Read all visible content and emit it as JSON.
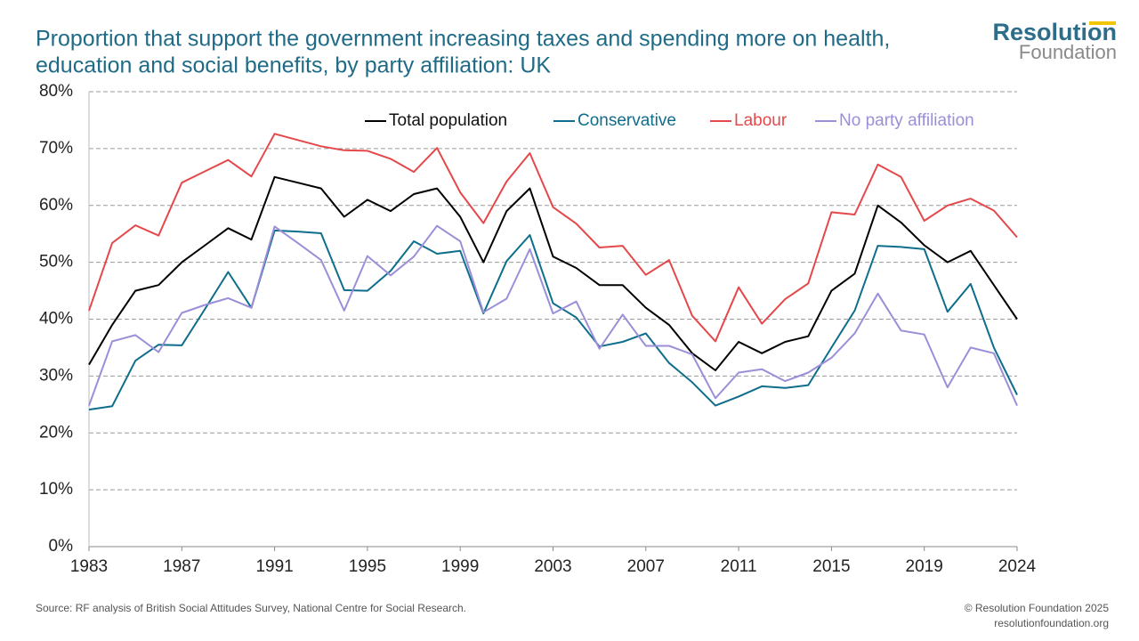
{
  "chart_data": {
    "type": "line",
    "title_lines": [
      "Proportion that support the government increasing taxes and spending more on health,",
      "education and social benefits, by party affiliation: UK"
    ],
    "categories": [
      "1983",
      null,
      null,
      null,
      "1987",
      null,
      null,
      null,
      "1991",
      null,
      null,
      null,
      "1995",
      null,
      null,
      null,
      "1999",
      null,
      null,
      null,
      "2003",
      null,
      null,
      null,
      "2007",
      null,
      null,
      null,
      "2011",
      null,
      null,
      null,
      "2015",
      null,
      null,
      null,
      "2019",
      null,
      null,
      null,
      "2024"
    ],
    "series": [
      {
        "name": "Total population",
        "color": "#000000",
        "values": [
          32,
          39,
          45,
          46,
          50,
          53,
          56,
          54,
          65,
          64,
          63,
          58,
          61,
          59,
          62,
          63,
          58,
          50,
          59,
          63,
          51,
          49,
          46,
          46,
          42,
          39,
          34,
          31,
          36,
          34,
          36,
          37,
          45,
          48,
          60,
          57,
          53,
          50,
          52,
          46,
          40
        ]
      },
      {
        "name": "Conservative",
        "color": "#0e6e8c",
        "values": [
          24.1,
          24.7,
          32.7,
          35.5,
          35.4,
          41.8,
          48.3,
          42,
          55.6,
          55.4,
          55.1,
          45.1,
          45,
          48.5,
          53.7,
          51.5,
          52,
          41,
          50.2,
          54.8,
          42.8,
          40.3,
          35.2,
          36,
          37.5,
          32.3,
          28.9,
          24.8,
          26.4,
          28.2,
          27.9,
          28.4,
          35,
          41.5,
          52.9,
          52.7,
          52.3,
          41.3,
          46.2,
          35,
          26.7
        ]
      },
      {
        "name": "Labour",
        "color": "#e5484a",
        "values": [
          41.5,
          53.4,
          56.5,
          54.7,
          64,
          66,
          68,
          65.1,
          72.6,
          71.5,
          70.4,
          69.7,
          69.6,
          68.2,
          65.9,
          70.1,
          62.3,
          56.9,
          64.2,
          69.2,
          59.7,
          56.8,
          52.6,
          52.9,
          47.8,
          50.4,
          40.6,
          36.1,
          45.6,
          39.2,
          43.5,
          46.3,
          58.8,
          58.4,
          67.2,
          65,
          57.3,
          60,
          61.2,
          59.1,
          54.4
        ]
      },
      {
        "name": "No party affiliation",
        "color": "#9b8fd8",
        "values": [
          24.8,
          36.1,
          37.2,
          34.2,
          41.1,
          42.5,
          43.7,
          42,
          56.3,
          53.4,
          50.4,
          41.5,
          51.1,
          47.7,
          51,
          56.4,
          53.7,
          41.2,
          43.6,
          52.3,
          41,
          43.1,
          34.8,
          40.8,
          35.3,
          35.3,
          33.8,
          26.1,
          30.6,
          31.2,
          29.1,
          30.6,
          33.2,
          37.5,
          44.5,
          38,
          37.3,
          28,
          35,
          34,
          24.8
        ]
      }
    ],
    "ylim": [
      0,
      80
    ],
    "yticks": [
      {
        "value": 0,
        "label": "0%"
      },
      {
        "value": 10,
        "label": "10%"
      },
      {
        "value": 20,
        "label": "20%"
      },
      {
        "value": 30,
        "label": "30%"
      },
      {
        "value": 40,
        "label": "40%"
      },
      {
        "value": 50,
        "label": "50%"
      },
      {
        "value": 60,
        "label": "60%"
      },
      {
        "value": 70,
        "label": "70%"
      },
      {
        "value": 80,
        "label": "80%"
      }
    ],
    "grid": true,
    "legend": "top",
    "source": "Source: RF analysis of British Social Attitudes Survey, National Centre for Social Research.",
    "copyright": "© Resolution Foundation 2025",
    "website": "resolutionfoundation.org",
    "logo": [
      "Resolution",
      "Foundation"
    ]
  }
}
